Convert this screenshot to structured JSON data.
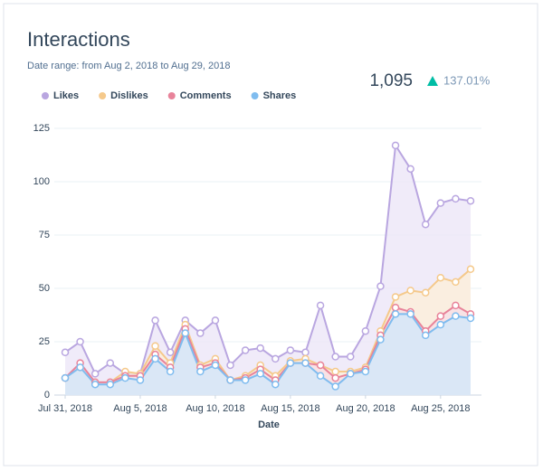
{
  "header": {
    "title": "Interactions",
    "date_range": "Date range: from Aug 2, 2018 to Aug 29, 2018",
    "total": "1,095",
    "change": "137.01%"
  },
  "chart_data": {
    "type": "area",
    "x_label": "Date",
    "x": [
      "2018-07-31",
      "2018-08-01",
      "2018-08-02",
      "2018-08-03",
      "2018-08-04",
      "2018-08-05",
      "2018-08-06",
      "2018-08-07",
      "2018-08-08",
      "2018-08-09",
      "2018-08-10",
      "2018-08-11",
      "2018-08-12",
      "2018-08-13",
      "2018-08-14",
      "2018-08-15",
      "2018-08-16",
      "2018-08-17",
      "2018-08-18",
      "2018-08-19",
      "2018-08-20",
      "2018-08-21",
      "2018-08-22",
      "2018-08-23",
      "2018-08-24",
      "2018-08-25",
      "2018-08-26",
      "2018-08-27"
    ],
    "xlim": [
      "2018-07-31",
      "2018-08-27"
    ],
    "xticks": [
      {
        "value": "2018-07-31",
        "label": "Jul 31, 2018"
      },
      {
        "value": "2018-08-05",
        "label": "Aug 5, 2018"
      },
      {
        "value": "2018-08-10",
        "label": "Aug 10, 2018"
      },
      {
        "value": "2018-08-15",
        "label": "Aug 15, 2018"
      },
      {
        "value": "2018-08-20",
        "label": "Aug 20, 2018"
      },
      {
        "value": "2018-08-25",
        "label": "Aug 25, 2018"
      }
    ],
    "ylim": [
      0,
      125
    ],
    "yticks": [
      0,
      25,
      50,
      75,
      100,
      125
    ],
    "grid": true,
    "legend": "top",
    "series": [
      {
        "name": "Likes",
        "color": "#b9a6e0",
        "fill": "#ece6f7",
        "values": [
          20,
          25,
          10,
          15,
          10,
          10,
          35,
          20,
          35,
          29,
          35,
          14,
          21,
          22,
          17,
          21,
          20,
          42,
          18,
          18,
          30,
          51,
          117,
          106,
          80,
          90,
          92,
          91
        ]
      },
      {
        "name": "Dislikes",
        "color": "#f5c98b",
        "fill": "#fcefd9",
        "values": [
          8,
          13,
          6,
          6,
          11,
          10,
          23,
          15,
          33,
          14,
          17,
          7,
          9,
          14,
          9,
          16,
          17,
          14,
          11,
          11,
          13,
          30,
          46,
          49,
          48,
          55,
          53,
          59
        ]
      },
      {
        "name": "Comments",
        "color": "#e8839a",
        "fill": "#f8dfe6",
        "values": [
          8,
          15,
          6,
          6,
          9,
          9,
          19,
          13,
          31,
          13,
          15,
          7,
          8,
          12,
          7,
          15,
          15,
          14,
          8,
          10,
          12,
          28,
          41,
          39,
          30,
          37,
          42,
          38
        ]
      },
      {
        "name": "Shares",
        "color": "#7fbcef",
        "fill": "#d2e8fa",
        "values": [
          8,
          13,
          5,
          5,
          8,
          7,
          17,
          11,
          29,
          11,
          14,
          7,
          7,
          10,
          5,
          15,
          15,
          9,
          4,
          10,
          11,
          26,
          38,
          38,
          28,
          33,
          37,
          36
        ]
      }
    ]
  }
}
